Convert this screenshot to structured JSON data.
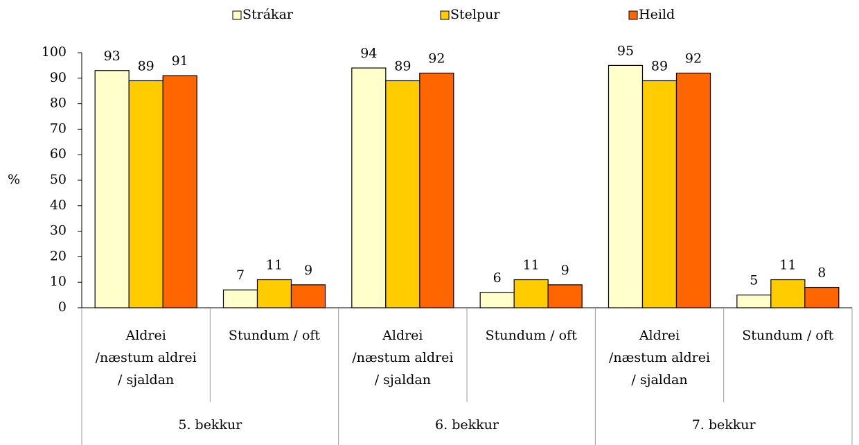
{
  "chart_data": {
    "type": "bar",
    "y_label": "%",
    "categories": [
      [
        "Aldrei",
        "/næstum aldrei",
        "/ sjaldan"
      ],
      [
        "Stundum / oft"
      ],
      [
        "Aldrei",
        "/næstum aldrei",
        "/ sjaldan"
      ],
      [
        "Stundum / oft"
      ],
      [
        "Aldrei",
        "/næstum aldrei",
        "/ sjaldan"
      ],
      [
        "Stundum / oft"
      ]
    ],
    "groups": [
      "5. bekkur",
      "6. bekkur",
      "7. bekkur"
    ],
    "series": [
      {
        "name": "Strákar",
        "color": "#ffffcc",
        "values": [
          93,
          7,
          94,
          6,
          95,
          5
        ]
      },
      {
        "name": "Stelpur",
        "color": "#ffcc00",
        "values": [
          89,
          11,
          89,
          11,
          89,
          11
        ]
      },
      {
        "name": "Heild",
        "color": "#ff6600",
        "values": [
          91,
          9,
          92,
          9,
          92,
          8
        ]
      }
    ],
    "ylim": [
      0,
      100
    ],
    "yticks": [
      0,
      10,
      20,
      30,
      40,
      50,
      60,
      70,
      80,
      90,
      100
    ],
    "grid": false,
    "legend": "top"
  }
}
